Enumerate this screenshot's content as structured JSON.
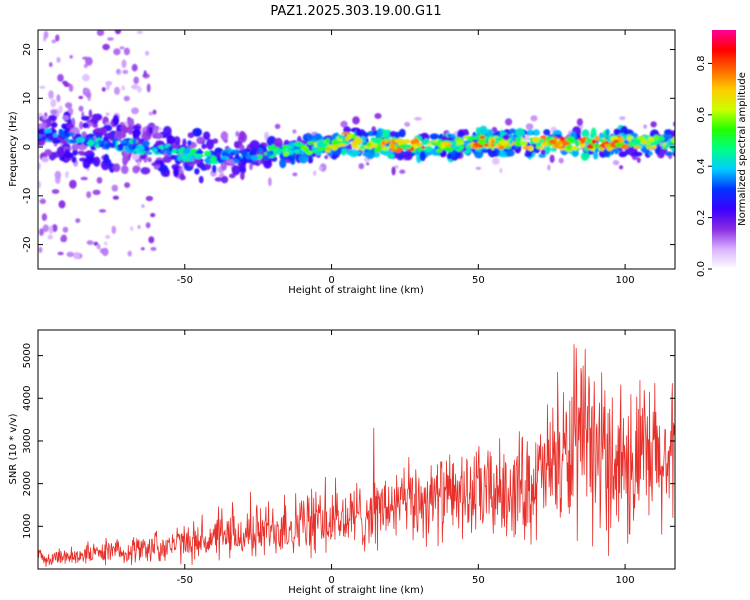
{
  "title": "PAZ1.2025.303.19.00.G11",
  "chart_data": [
    {
      "type": "heatmap",
      "xlabel": "Height of straight line (km)",
      "ylabel": "Frequency (Hz)",
      "xlim": [
        -100,
        117
      ],
      "ylim": [
        -25,
        24
      ],
      "xticks": [
        -50,
        0,
        50,
        100
      ],
      "xtick_labels": [
        "-50",
        "0",
        "50",
        "100"
      ],
      "yticks": [
        20,
        10,
        0,
        -10,
        -20
      ],
      "ytick_labels": [
        "20",
        "10",
        "0",
        "-10",
        "-20"
      ],
      "ridge": {
        "x": [
          -100,
          -90,
          -80,
          -70,
          -60,
          -50,
          -45,
          -40,
          -35,
          -30,
          -25,
          -20,
          -10,
          0,
          5,
          10,
          20,
          30,
          40,
          50,
          60,
          70,
          80,
          90,
          100,
          110,
          117
        ],
        "freq": [
          2.5,
          2,
          1.2,
          0.3,
          -0.5,
          -1.5,
          -2,
          -2.2,
          -1.8,
          -1.8,
          -1.6,
          -1,
          -0.3,
          0.3,
          1.8,
          0.5,
          0.4,
          0.3,
          0.3,
          1.2,
          0.8,
          0.8,
          0.6,
          0.7,
          1.0,
          1.0,
          0.8
        ],
        "amplitude": [
          0.35,
          0.42,
          0.45,
          0.45,
          0.45,
          0.48,
          0.52,
          0.5,
          0.4,
          0.42,
          0.5,
          0.55,
          0.6,
          0.75,
          0.72,
          0.7,
          0.78,
          0.82,
          0.72,
          0.78,
          0.72,
          0.72,
          0.82,
          0.85,
          0.78,
          0.7,
          0.68
        ]
      },
      "colorbar": {
        "label": "Normalized spectral amplitude",
        "range": [
          0,
          0.93
        ],
        "ticks": [
          0.0,
          0.2,
          0.4,
          0.6,
          0.8
        ],
        "tick_labels": [
          "0.0",
          "0.2",
          "0.4",
          "0.6",
          "0.8"
        ],
        "colormap": [
          "#ffffff",
          "#d9b3ff",
          "#8a2be2",
          "#3a00ff",
          "#0033ff",
          "#00ccff",
          "#00ff88",
          "#22ff00",
          "#ccff00",
          "#ffcc00",
          "#ff6600",
          "#ff0000",
          "#ff0099"
        ]
      }
    },
    {
      "type": "line",
      "xlabel": "Height of straight line (km)",
      "ylabel": "SNR (10 * v/v)",
      "xlim": [
        -100,
        117
      ],
      "ylim": [
        0,
        5600
      ],
      "xticks": [
        -50,
        0,
        50,
        100
      ],
      "xtick_labels": [
        "-50",
        "0",
        "50",
        "100"
      ],
      "yticks": [
        1000,
        2000,
        3000,
        4000,
        5000
      ],
      "ytick_labels": [
        "1000",
        "2000",
        "3000",
        "4000",
        "5000"
      ],
      "color": "#e8302a",
      "envelope": {
        "x": [
          -100,
          -90,
          -80,
          -70,
          -60,
          -50,
          -40,
          -30,
          -20,
          -10,
          0,
          10,
          20,
          30,
          40,
          50,
          60,
          70,
          75,
          80,
          85,
          90,
          95,
          100,
          105,
          110,
          117
        ],
        "center": [
          250,
          300,
          380,
          420,
          520,
          600,
          700,
          800,
          950,
          1050,
          1100,
          1250,
          1450,
          1600,
          1700,
          1750,
          1850,
          2050,
          2450,
          2600,
          2800,
          2700,
          2600,
          2600,
          2500,
          2500,
          2400
        ],
        "spread": [
          180,
          220,
          260,
          320,
          380,
          450,
          500,
          600,
          700,
          800,
          800,
          850,
          900,
          1000,
          1000,
          1100,
          1200,
          1400,
          1600,
          1800,
          2100,
          2000,
          2000,
          2100,
          2000,
          1900,
          1800
        ]
      },
      "n_points": 1200,
      "seed": 7
    }
  ]
}
